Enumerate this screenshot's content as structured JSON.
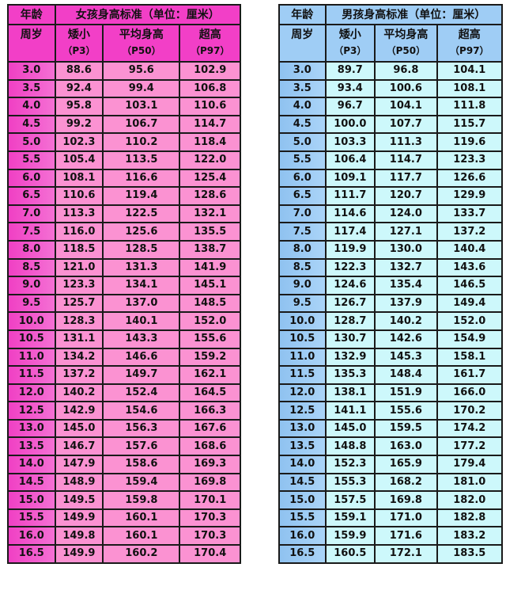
{
  "girls": {
    "age_label": "年龄",
    "title": "女孩身高标准（单位：厘米）",
    "age_unit": "周岁",
    "columns": [
      {
        "label": "矮小",
        "sub": "（P3）"
      },
      {
        "label": "平均身高",
        "sub": "（P50）"
      },
      {
        "label": "超高",
        "sub": "（P97）"
      }
    ],
    "rows": [
      [
        "3.0",
        "88.6",
        "95.6",
        "102.9"
      ],
      [
        "3.5",
        "92.4",
        "99.4",
        "106.8"
      ],
      [
        "4.0",
        "95.8",
        "103.1",
        "110.6"
      ],
      [
        "4.5",
        "99.2",
        "106.7",
        "114.7"
      ],
      [
        "5.0",
        "102.3",
        "110.2",
        "118.4"
      ],
      [
        "5.5",
        "105.4",
        "113.5",
        "122.0"
      ],
      [
        "6.0",
        "108.1",
        "116.6",
        "125.4"
      ],
      [
        "6.5",
        "110.6",
        "119.4",
        "128.6"
      ],
      [
        "7.0",
        "113.3",
        "122.5",
        "132.1"
      ],
      [
        "7.5",
        "116.0",
        "125.6",
        "135.5"
      ],
      [
        "8.0",
        "118.5",
        "128.5",
        "138.7"
      ],
      [
        "8.5",
        "121.0",
        "131.3",
        "141.9"
      ],
      [
        "9.0",
        "123.3",
        "134.1",
        "145.1"
      ],
      [
        "9.5",
        "125.7",
        "137.0",
        "148.5"
      ],
      [
        "10.0",
        "128.3",
        "140.1",
        "152.0"
      ],
      [
        "10.5",
        "131.1",
        "143.3",
        "155.6"
      ],
      [
        "11.0",
        "134.2",
        "146.6",
        "159.2"
      ],
      [
        "11.5",
        "137.2",
        "149.7",
        "162.1"
      ],
      [
        "12.0",
        "140.2",
        "152.4",
        "164.5"
      ],
      [
        "12.5",
        "142.9",
        "154.6",
        "166.3"
      ],
      [
        "13.0",
        "145.0",
        "156.3",
        "167.6"
      ],
      [
        "13.5",
        "146.7",
        "157.6",
        "168.6"
      ],
      [
        "14.0",
        "147.9",
        "158.6",
        "169.3"
      ],
      [
        "14.5",
        "148.9",
        "159.4",
        "169.8"
      ],
      [
        "15.0",
        "149.5",
        "159.8",
        "170.1"
      ],
      [
        "15.5",
        "149.9",
        "160.1",
        "170.3"
      ],
      [
        "16.0",
        "149.8",
        "160.1",
        "170.3"
      ],
      [
        "16.5",
        "149.9",
        "160.2",
        "170.4"
      ]
    ]
  },
  "boys": {
    "age_label": "年龄",
    "title": "男孩身高标准（单位：厘米）",
    "age_unit": "周岁",
    "columns": [
      {
        "label": "矮小",
        "sub": "（P3）"
      },
      {
        "label": "平均身高",
        "sub": "（P50）"
      },
      {
        "label": "超高",
        "sub": "（P97）"
      }
    ],
    "rows": [
      [
        "3.0",
        "89.7",
        "96.8",
        "104.1"
      ],
      [
        "3.5",
        "93.4",
        "100.6",
        "108.1"
      ],
      [
        "4.0",
        "96.7",
        "104.1",
        "111.8"
      ],
      [
        "4.5",
        "100.0",
        "107.7",
        "115.7"
      ],
      [
        "5.0",
        "103.3",
        "111.3",
        "119.6"
      ],
      [
        "5.5",
        "106.4",
        "114.7",
        "123.3"
      ],
      [
        "6.0",
        "109.1",
        "117.7",
        "126.6"
      ],
      [
        "6.5",
        "111.7",
        "120.7",
        "129.9"
      ],
      [
        "7.0",
        "114.6",
        "124.0",
        "133.7"
      ],
      [
        "7.5",
        "117.4",
        "127.1",
        "137.2"
      ],
      [
        "8.0",
        "119.9",
        "130.0",
        "140.4"
      ],
      [
        "8.5",
        "122.3",
        "132.7",
        "143.6"
      ],
      [
        "9.0",
        "124.6",
        "135.4",
        "146.5"
      ],
      [
        "9.5",
        "126.7",
        "137.9",
        "149.4"
      ],
      [
        "10.0",
        "128.7",
        "140.2",
        "152.0"
      ],
      [
        "10.5",
        "130.7",
        "142.6",
        "154.9"
      ],
      [
        "11.0",
        "132.9",
        "145.3",
        "158.1"
      ],
      [
        "11.5",
        "135.3",
        "148.4",
        "161.7"
      ],
      [
        "12.0",
        "138.1",
        "151.9",
        "166.0"
      ],
      [
        "12.5",
        "141.1",
        "155.6",
        "170.2"
      ],
      [
        "13.0",
        "145.0",
        "159.5",
        "174.2"
      ],
      [
        "13.5",
        "148.8",
        "163.0",
        "177.2"
      ],
      [
        "14.0",
        "152.3",
        "165.9",
        "179.4"
      ],
      [
        "14.5",
        "155.3",
        "168.2",
        "181.0"
      ],
      [
        "15.0",
        "157.5",
        "169.8",
        "182.0"
      ],
      [
        "15.5",
        "159.1",
        "171.0",
        "182.8"
      ],
      [
        "16.0",
        "159.9",
        "171.6",
        "183.2"
      ],
      [
        "16.5",
        "160.5",
        "172.1",
        "183.5"
      ]
    ]
  },
  "colors": {
    "girls_header": "#f23fc7",
    "girls_cell": "#fb92d2",
    "boys_header": "#9fcdf5",
    "boys_cell": "#cdf8fb"
  }
}
